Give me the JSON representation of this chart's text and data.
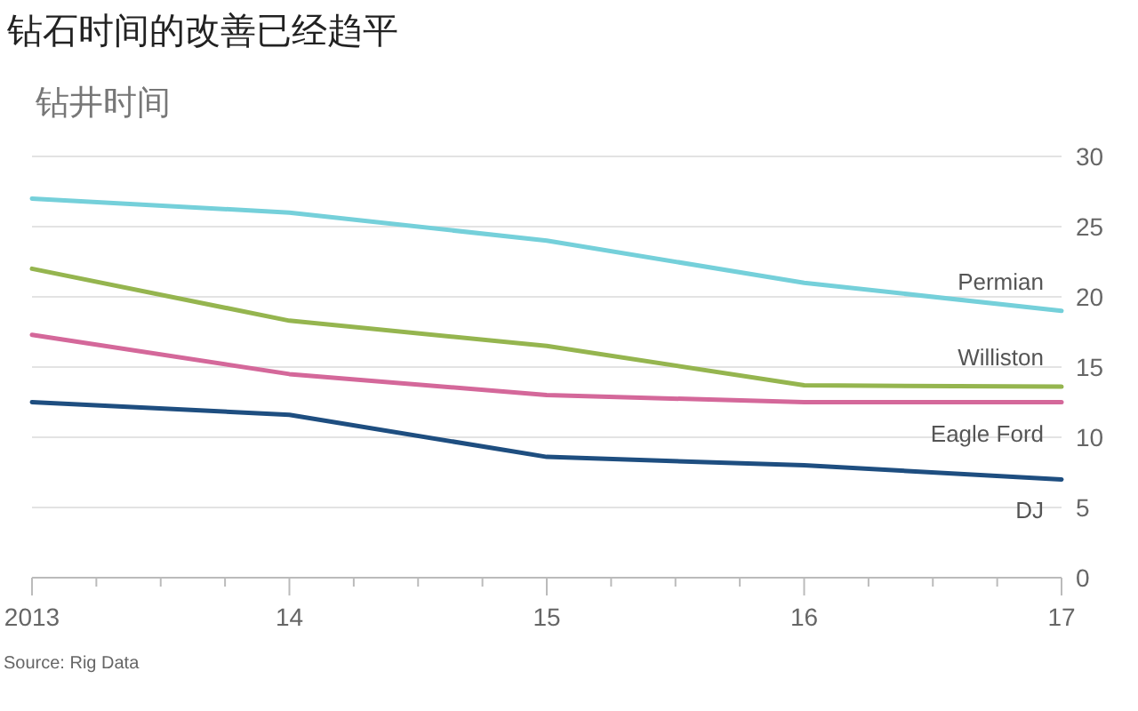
{
  "chart_data": {
    "type": "line",
    "title": "钻石时间的改善已经趋平",
    "subtitle": "钻井时间",
    "x": [
      2013,
      2014,
      2015,
      2016,
      2017
    ],
    "series": [
      {
        "name": "Permian",
        "color": "#75d0da",
        "values": [
          27,
          26,
          24,
          21,
          19
        ]
      },
      {
        "name": "Williston",
        "color": "#95b54f",
        "values": [
          22,
          18.3,
          16.5,
          13.7,
          13.6
        ]
      },
      {
        "name": "Eagle Ford",
        "color": "#d4689a",
        "values": [
          17.3,
          14.5,
          13,
          12.5,
          12.5
        ]
      },
      {
        "name": "DJ",
        "color": "#1e4e80",
        "values": [
          12.5,
          11.6,
          8.6,
          8,
          7
        ]
      }
    ],
    "xlim": [
      2013,
      2017
    ],
    "xticks": [
      {
        "value": 2013,
        "label": "2013"
      },
      {
        "value": 2013.25,
        "label": null
      },
      {
        "value": 2013.5,
        "label": null
      },
      {
        "value": 2013.75,
        "label": null
      },
      {
        "value": 2014,
        "label": "14"
      },
      {
        "value": 2014.25,
        "label": null
      },
      {
        "value": 2014.5,
        "label": null
      },
      {
        "value": 2014.75,
        "label": null
      },
      {
        "value": 2015,
        "label": "15"
      },
      {
        "value": 2015.25,
        "label": null
      },
      {
        "value": 2015.5,
        "label": null
      },
      {
        "value": 2015.75,
        "label": null
      },
      {
        "value": 2016,
        "label": "16"
      },
      {
        "value": 2016.25,
        "label": null
      },
      {
        "value": 2016.5,
        "label": null
      },
      {
        "value": 2016.75,
        "label": null
      },
      {
        "value": 2017,
        "label": "17"
      }
    ],
    "ylim": [
      0,
      30
    ],
    "yticks": [
      0,
      5,
      10,
      15,
      20,
      25,
      30
    ],
    "grid": "y",
    "annotations": [
      "Source: Rig Data"
    ]
  }
}
